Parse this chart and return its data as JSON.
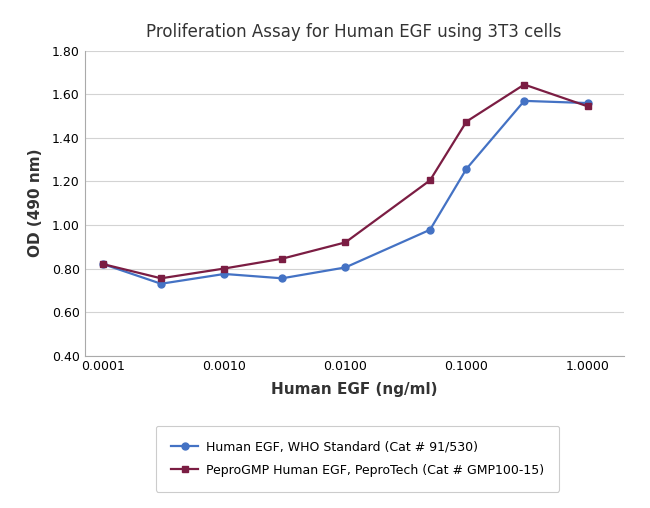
{
  "title": "Proliferation Assay for Human EGF using 3T3 cells",
  "xlabel": "Human EGF (ng/ml)",
  "ylabel": "OD (490 nm)",
  "ylim": [
    0.4,
    1.8
  ],
  "yticks": [
    0.4,
    0.6,
    0.8,
    1.0,
    1.2,
    1.4,
    1.6,
    1.8
  ],
  "xtick_vals": [
    0.0001,
    0.001,
    0.01,
    0.1,
    1.0
  ],
  "xtick_labels": [
    "0.0001",
    "0.0010",
    "0.0100",
    "0.1000",
    "1.0000"
  ],
  "series1": {
    "label": "Human EGF, WHO Standard (Cat # 91/530)",
    "color": "#4472C4",
    "marker": "o",
    "x": [
      0.0001,
      0.0003,
      0.001,
      0.003,
      0.01,
      0.05,
      0.1,
      0.3,
      1.0
    ],
    "y": [
      0.82,
      0.73,
      0.775,
      0.755,
      0.805,
      0.978,
      1.258,
      1.57,
      1.56
    ]
  },
  "series2": {
    "label": "PeproGMP Human EGF, PeproTech (Cat # GMP100-15)",
    "color": "#7B1D43",
    "marker": "s",
    "x": [
      0.0001,
      0.0003,
      0.001,
      0.003,
      0.01,
      0.05,
      0.1,
      0.3,
      1.0
    ],
    "y": [
      0.82,
      0.755,
      0.8,
      0.845,
      0.92,
      1.205,
      1.475,
      1.645,
      1.545
    ]
  },
  "background_color": "#ffffff",
  "grid_color": "#d3d3d3",
  "title_fontsize": 12,
  "label_fontsize": 11,
  "tick_fontsize": 9,
  "legend_fontsize": 9,
  "linewidth": 1.6,
  "markersize": 5
}
